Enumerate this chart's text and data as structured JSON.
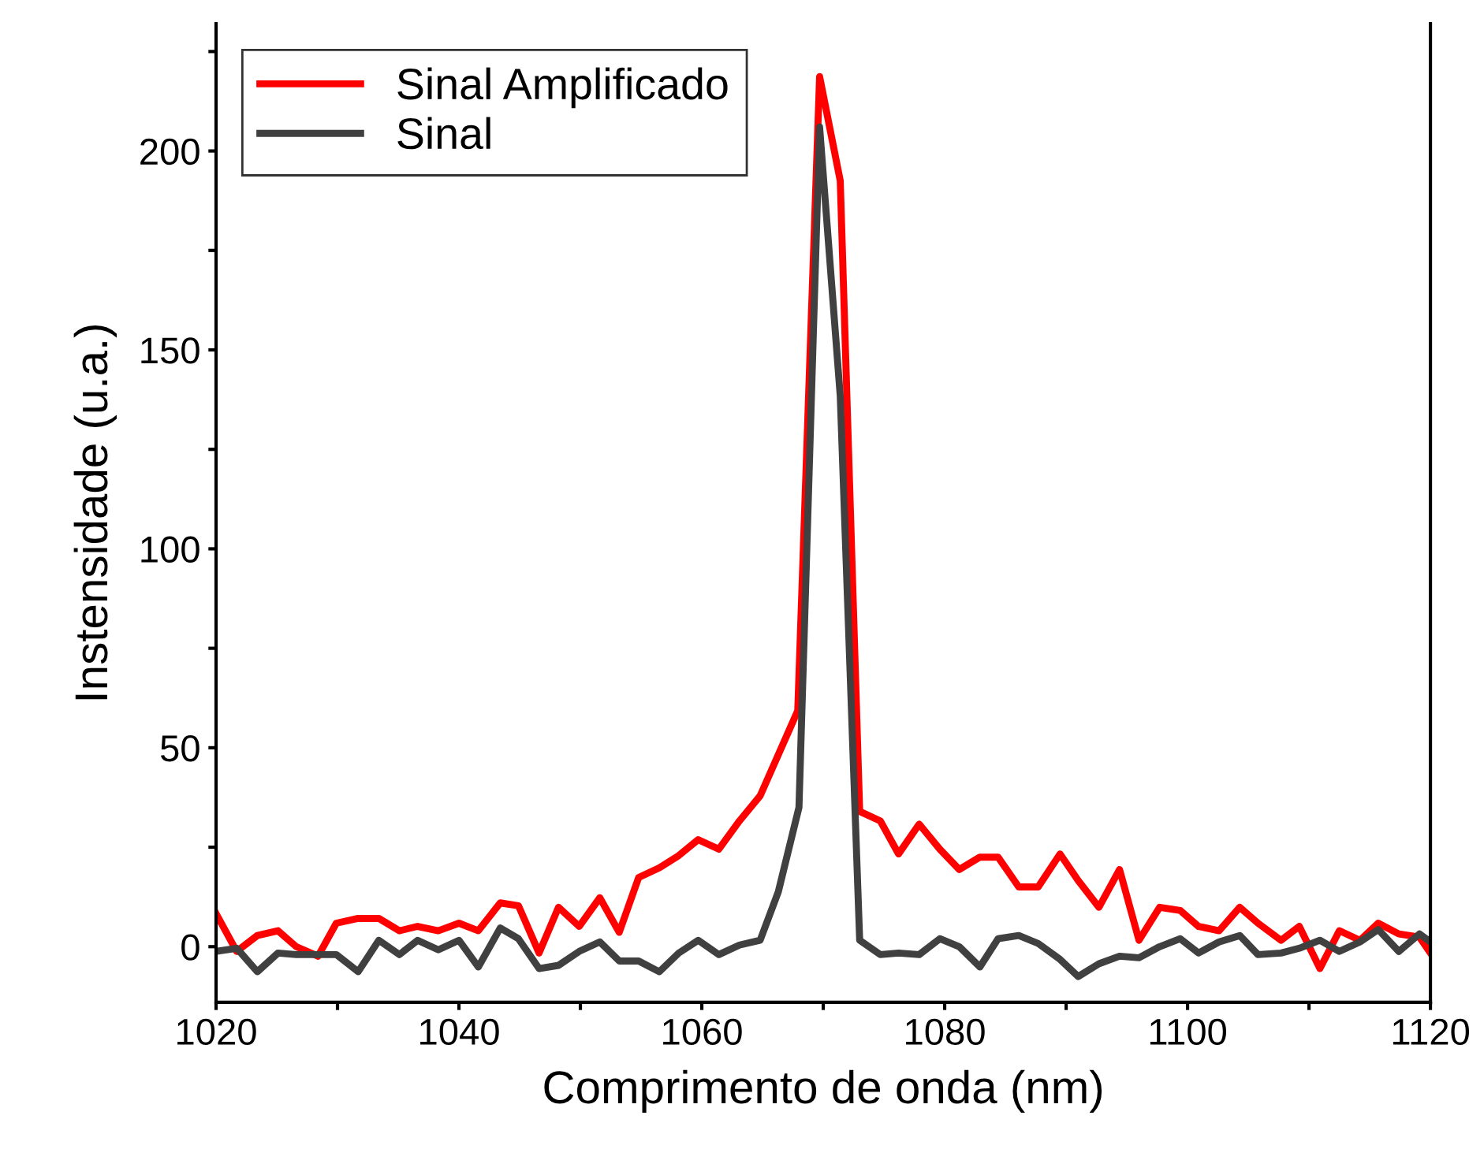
{
  "chart_data": {
    "type": "line",
    "xlabel": "Comprimento de onda (nm)",
    "ylabel": "Instensidade (u.a.)",
    "xlim": [
      1020,
      1120
    ],
    "ylim": [
      -14,
      232
    ],
    "xticks": [
      1020,
      {
        "value": 1030,
        "label": null
      },
      1040,
      {
        "value": 1050,
        "label": null
      },
      1060,
      {
        "value": 1070,
        "label": null
      },
      1080,
      {
        "value": 1090,
        "label": null
      },
      1100,
      {
        "value": 1110,
        "label": null
      },
      1120
    ],
    "yticks": [
      0,
      {
        "value": 25,
        "label": null
      },
      50,
      {
        "value": 75,
        "label": null
      },
      100,
      {
        "value": 125,
        "label": null
      },
      150,
      {
        "value": 175,
        "label": null
      },
      200,
      {
        "value": 225,
        "label": null
      }
    ],
    "grid": false,
    "legend": "top left",
    "marker": "none",
    "line_style": "solid",
    "series": [
      {
        "name": "Sinal Amplificado",
        "color": "#ff0000",
        "x": [
          1020.0,
          1021.7,
          1023.4,
          1025.1,
          1026.6,
          1028.4,
          1029.9,
          1031.7,
          1033.4,
          1035.1,
          1036.6,
          1038.3,
          1040.0,
          1041.6,
          1043.4,
          1044.9,
          1046.6,
          1048.2,
          1049.9,
          1051.6,
          1053.2,
          1054.8,
          1056.5,
          1058.1,
          1059.7,
          1061.4,
          1063.1,
          1064.8,
          1067.9,
          1069.7,
          1071.4,
          1073.0,
          1074.7,
          1076.2,
          1077.9,
          1079.6,
          1081.2,
          1082.9,
          1084.4,
          1086.1,
          1087.7,
          1089.5,
          1091.0,
          1092.7,
          1094.4,
          1096.0,
          1097.7,
          1099.4,
          1100.9,
          1102.6,
          1104.3,
          1105.8,
          1107.7,
          1109.2,
          1110.9,
          1112.5,
          1114.2,
          1115.7,
          1117.4,
          1119.1,
          1120.0
        ],
        "values": [
          8.3,
          -1.2,
          2.8,
          4,
          0,
          -2.4,
          5.9,
          7.1,
          7.1,
          4,
          5.1,
          4,
          5.9,
          4,
          11,
          10.3,
          -1.6,
          9.9,
          5.1,
          12.3,
          3.6,
          17.4,
          19.8,
          22.9,
          26.9,
          24.5,
          31.6,
          37.9,
          59.3,
          218.7,
          192.5,
          34,
          31.6,
          23.3,
          30.8,
          24.5,
          19.4,
          22.5,
          22.5,
          15,
          15,
          23.3,
          16.6,
          9.9,
          19.4,
          1.6,
          9.9,
          9.1,
          5.1,
          4,
          9.9,
          5.9,
          1.6,
          5.1,
          -5.5,
          4,
          1.6,
          5.9,
          3.2,
          2.4,
          -1.6
        ]
      },
      {
        "name": "Sinal",
        "color": "#404040",
        "x": [
          1020.0,
          1021.7,
          1023.4,
          1025.1,
          1026.6,
          1028.4,
          1029.9,
          1031.7,
          1033.4,
          1035.1,
          1036.6,
          1038.3,
          1040.0,
          1041.6,
          1043.4,
          1044.9,
          1046.6,
          1048.2,
          1049.9,
          1051.6,
          1053.2,
          1054.8,
          1056.5,
          1058.1,
          1059.7,
          1061.4,
          1063.1,
          1064.8,
          1066.3,
          1068.0,
          1069.7,
          1071.4,
          1073.0,
          1074.7,
          1076.2,
          1077.9,
          1079.6,
          1081.2,
          1082.9,
          1084.4,
          1086.1,
          1087.7,
          1089.5,
          1091.0,
          1092.7,
          1094.4,
          1096.0,
          1097.7,
          1099.4,
          1100.9,
          1102.6,
          1104.3,
          1105.8,
          1107.7,
          1109.2,
          1110.9,
          1112.5,
          1114.2,
          1115.7,
          1117.4,
          1119.1,
          1120.0
        ],
        "values": [
          -1.2,
          -0.4,
          -6.3,
          -1.6,
          -2,
          -2,
          -2,
          -6.3,
          1.6,
          -2,
          1.6,
          -0.8,
          1.6,
          -5.1,
          4.7,
          2,
          -5.5,
          -4.7,
          -1.2,
          1.2,
          -3.6,
          -3.6,
          -6.3,
          -1.6,
          1.6,
          -2,
          0.4,
          1.6,
          13.8,
          35,
          206,
          138.4,
          1.6,
          -2,
          -1.6,
          -2,
          2,
          0,
          -5.1,
          2,
          2.8,
          0.8,
          -3.2,
          -7.5,
          -4.3,
          -2.4,
          -2.8,
          0,
          2,
          -1.6,
          1.2,
          2.8,
          -2,
          -1.6,
          -0.4,
          1.6,
          -1.2,
          1.2,
          4.3,
          -1.2,
          3.2,
          1.2
        ]
      }
    ]
  }
}
